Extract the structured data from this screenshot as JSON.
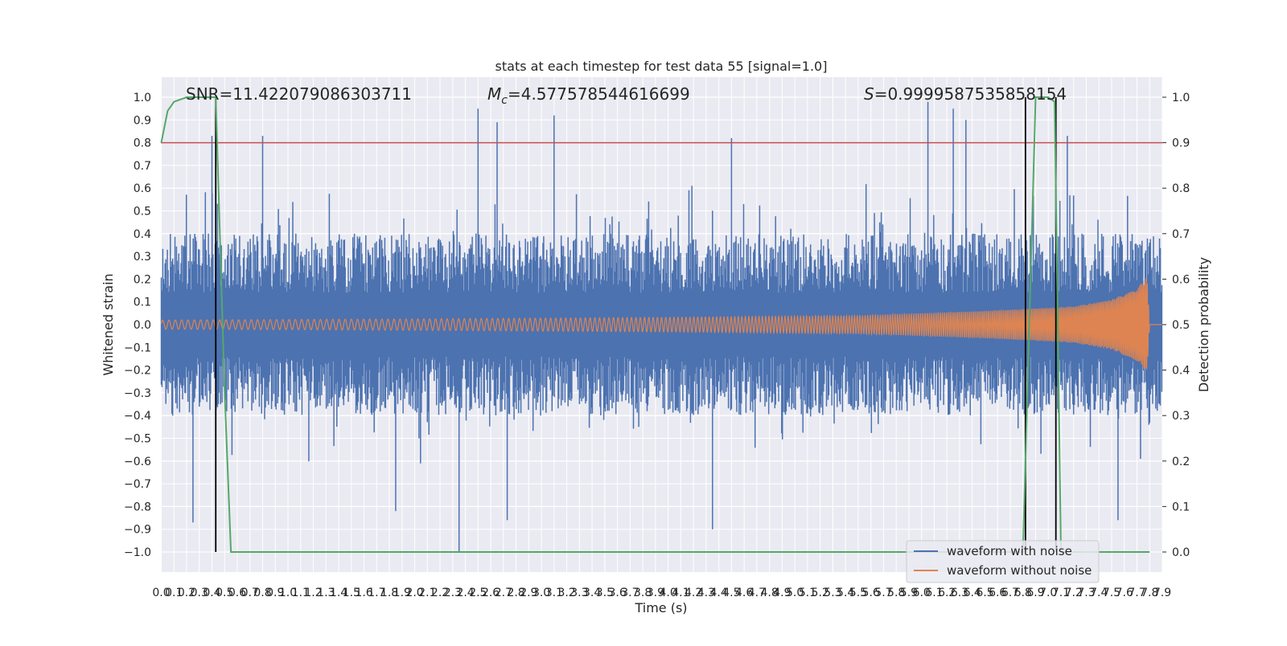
{
  "chart_data": {
    "type": "line",
    "title": "stats at each timestep for test data 55 [signal=1.0]",
    "xlabel": "Time (s)",
    "ylabel": "Whitened strain",
    "ylabel_right": "Detection probability",
    "xlim": [
      0.0,
      7.9
    ],
    "ylim": [
      -1.1,
      1.1
    ],
    "ylim_right": [
      -0.05,
      1.05
    ],
    "grid": true,
    "legend_position": "lower-right",
    "x_ticks": [
      "0.0",
      "0.1",
      "0.2",
      "0.3",
      "0.4",
      "0.5",
      "0.6",
      "0.7",
      "0.8",
      "0.9",
      "1.0",
      "1.1",
      "1.2",
      "1.3",
      "1.4",
      "1.5",
      "1.6",
      "1.7",
      "1.8",
      "1.9",
      "2.0",
      "2.1",
      "2.2",
      "2.3",
      "2.4",
      "2.5",
      "2.6",
      "2.7",
      "2.8",
      "2.9",
      "3.0",
      "3.1",
      "3.2",
      "3.3",
      "3.4",
      "3.5",
      "3.6",
      "3.7",
      "3.8",
      "3.9",
      "4.0",
      "4.1",
      "4.2",
      "4.3",
      "4.4",
      "4.5",
      "4.6",
      "4.7",
      "4.8",
      "4.9",
      "5.0",
      "5.1",
      "5.2",
      "5.3",
      "5.4",
      "5.5",
      "5.6",
      "5.7",
      "5.8",
      "5.9",
      "6.0",
      "6.1",
      "6.2",
      "6.3",
      "6.4",
      "6.5",
      "6.6",
      "6.7",
      "6.8",
      "6.9",
      "7.0",
      "7.1",
      "7.2",
      "7.3",
      "7.4",
      "7.5",
      "7.6",
      "7.7",
      "7.8",
      "7.9"
    ],
    "y_ticks": [
      "1.0",
      "0.9",
      "0.8",
      "0.7",
      "0.6",
      "0.5",
      "0.4",
      "0.3",
      "0.2",
      "0.1",
      "0.0",
      "−0.1",
      "−0.2",
      "−0.3",
      "−0.4",
      "−0.5",
      "−0.6",
      "−0.7",
      "−0.8",
      "−0.9",
      "−1.0"
    ],
    "y_ticks_right": [
      "1.0",
      "0.9",
      "0.8",
      "0.7",
      "0.6",
      "0.5",
      "0.4",
      "0.3",
      "0.2",
      "0.1",
      "0.0"
    ],
    "annotations": {
      "snr": "SNR=11.422079086303711",
      "mc_symbol": "M",
      "mc_sub": "c",
      "mc_value": "=4.577578544616699",
      "s_symbol": "S",
      "s_value": "=0.9999587535858154"
    },
    "threshold_level": 0.9,
    "marker_times": [
      0.43,
      6.82,
      7.06
    ],
    "series": [
      {
        "name": "waveform with noise",
        "color": "#4c72b0",
        "description": "dense noisy strain, typically within ±0.4 with spikes to ±1.0",
        "envelope_typical": 0.4,
        "spikes": [
          [
            0.4,
            0.83
          ],
          [
            0.8,
            0.83
          ],
          [
            2.5,
            0.95
          ],
          [
            2.65,
            0.89
          ],
          [
            3.1,
            0.92
          ],
          [
            4.5,
            0.82
          ],
          [
            6.05,
            0.98
          ],
          [
            6.25,
            0.95
          ],
          [
            6.35,
            0.9
          ],
          [
            7.15,
            0.83
          ],
          [
            0.25,
            -0.87
          ],
          [
            2.35,
            -1.0
          ],
          [
            4.35,
            -0.9
          ],
          [
            1.85,
            -0.82
          ],
          [
            7.55,
            -0.86
          ],
          [
            2.73,
            -0.86
          ]
        ]
      },
      {
        "name": "waveform without noise",
        "color": "#dd8452",
        "description": "chirp signal with amplitude growing to merger near 7.8 s",
        "amplitude": [
          [
            0.0,
            0.02
          ],
          [
            2.0,
            0.025
          ],
          [
            4.0,
            0.032
          ],
          [
            5.5,
            0.04
          ],
          [
            6.5,
            0.06
          ],
          [
            7.2,
            0.08
          ],
          [
            7.5,
            0.11
          ],
          [
            7.7,
            0.16
          ],
          [
            7.78,
            0.21
          ],
          [
            7.8,
            0.0
          ],
          [
            7.9,
            0.0
          ]
        ]
      },
      {
        "name": "detection probability",
        "color": "#55a868",
        "axis": "right",
        "x": [
          0.0,
          0.05,
          0.1,
          0.2,
          0.3,
          0.4,
          0.43,
          0.5,
          0.55,
          0.6,
          2.5,
          4.5,
          6.8,
          6.85,
          6.9,
          7.0,
          7.05,
          7.1,
          7.15,
          7.5,
          7.8
        ],
        "y": [
          0.9,
          0.97,
          0.99,
          1.0,
          1.0,
          1.0,
          1.0,
          0.35,
          0.0,
          0.0,
          0.0,
          0.0,
          0.0,
          0.5,
          1.0,
          1.0,
          0.99,
          0.0,
          0.0,
          0.0,
          0.0
        ]
      }
    ]
  }
}
